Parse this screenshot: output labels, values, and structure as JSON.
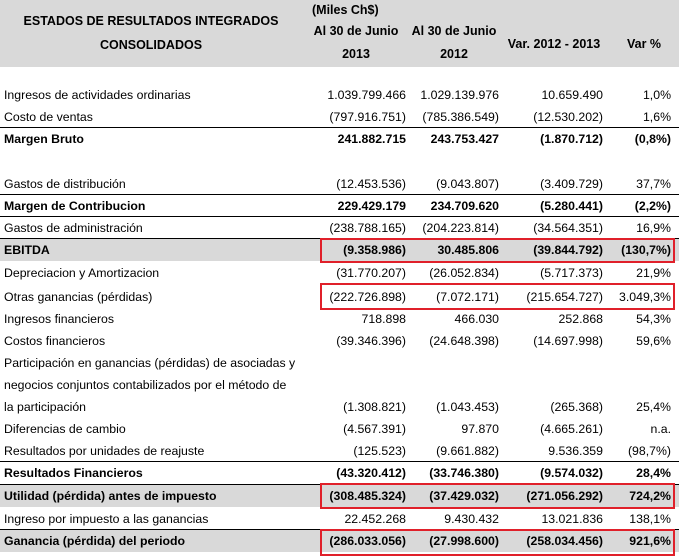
{
  "header": {
    "title_line1": "ESTADOS DE RESULTADOS INTEGRADOS",
    "title_line2": "CONSOLIDADOS",
    "units": "(Miles Ch$)",
    "col1_line1": "Al  30 de Junio",
    "col1_line2": "2013",
    "col2_line1": "Al 30 de Junio",
    "col2_line2": "2012",
    "col3": "Var. 2012 - 2013",
    "col4": "Var %"
  },
  "rows": [
    {
      "label": "Ingresos de actividades ordinarias",
      "v2013": "1.039.799.466",
      "v2012": "1.029.139.976",
      "var": "10.659.490",
      "pct": "1,0%"
    },
    {
      "label": "Costo de ventas",
      "v2013": "(797.916.751)",
      "v2012": "(785.386.549)",
      "var": "(12.530.202)",
      "pct": "1,6%"
    },
    {
      "label": "Margen Bruto",
      "v2013": "241.882.715",
      "v2012": "243.753.427",
      "var": "(1.870.712)",
      "pct": "(0,8%)"
    },
    {
      "label": "Gastos de distribución",
      "v2013": "(12.453.536)",
      "v2012": "(9.043.807)",
      "var": "(3.409.729)",
      "pct": "37,7%"
    },
    {
      "label": "Margen de Contribucion",
      "v2013": "229.429.179",
      "v2012": "234.709.620",
      "var": "(5.280.441)",
      "pct": "(2,2%)"
    },
    {
      "label": "Gastos de administración",
      "v2013": "(238.788.165)",
      "v2012": "(204.223.814)",
      "var": "(34.564.351)",
      "pct": "16,9%"
    },
    {
      "label": "EBITDA",
      "v2013": "(9.358.986)",
      "v2012": "30.485.806",
      "var": "(39.844.792)",
      "pct": "(130,7%)"
    },
    {
      "label": "Depreciacion y Amortizacion",
      "v2013": "(31.770.207)",
      "v2012": "(26.052.834)",
      "var": "(5.717.373)",
      "pct": "21,9%"
    },
    {
      "label": "Otras ganancias (pérdidas)",
      "v2013": "(222.726.898)",
      "v2012": "(7.072.171)",
      "var": "(215.654.727)",
      "pct": "3.049,3%"
    },
    {
      "label": "Ingresos financieros",
      "v2013": "718.898",
      "v2012": "466.030",
      "var": "252.868",
      "pct": "54,3%"
    },
    {
      "label": "Costos financieros",
      "v2013": "(39.346.396)",
      "v2012": "(24.648.398)",
      "var": "(14.697.998)",
      "pct": "59,6%"
    },
    {
      "label_line1": "Participación en ganancias (pérdidas) de asociadas y",
      "label_line2": "negocios conjuntos contabilizados por el método de",
      "label": "la participación",
      "v2013": "(1.308.821)",
      "v2012": "(1.043.453)",
      "var": "(265.368)",
      "pct": "25,4%"
    },
    {
      "label": "Diferencias de cambio",
      "v2013": "(4.567.391)",
      "v2012": "97.870",
      "var": "(4.665.261)",
      "pct": "n.a."
    },
    {
      "label": "Resultados por unidades de reajuste",
      "v2013": "(125.523)",
      "v2012": "(9.661.882)",
      "var": "9.536.359",
      "pct": "(98,7%)"
    },
    {
      "label": "Resultados Financieros",
      "v2013": "(43.320.412)",
      "v2012": "(33.746.380)",
      "var": "(9.574.032)",
      "pct": "28,4%"
    },
    {
      "label": "Utilidad (pérdida) antes de impuesto",
      "v2013": "(308.485.324)",
      "v2012": "(37.429.032)",
      "var": "(271.056.292)",
      "pct": "724,2%"
    },
    {
      "label": "Ingreso por impuesto a las ganancias",
      "v2013": "22.452.268",
      "v2012": "9.430.432",
      "var": "13.021.836",
      "pct": "138,1%"
    },
    {
      "label": "Ganancia (pérdida) del periodo",
      "v2013": "(286.033.056)",
      "v2012": "(27.998.600)",
      "var": "(258.034.456)",
      "pct": "921,6%"
    }
  ],
  "highlight_color": "#e0202a"
}
